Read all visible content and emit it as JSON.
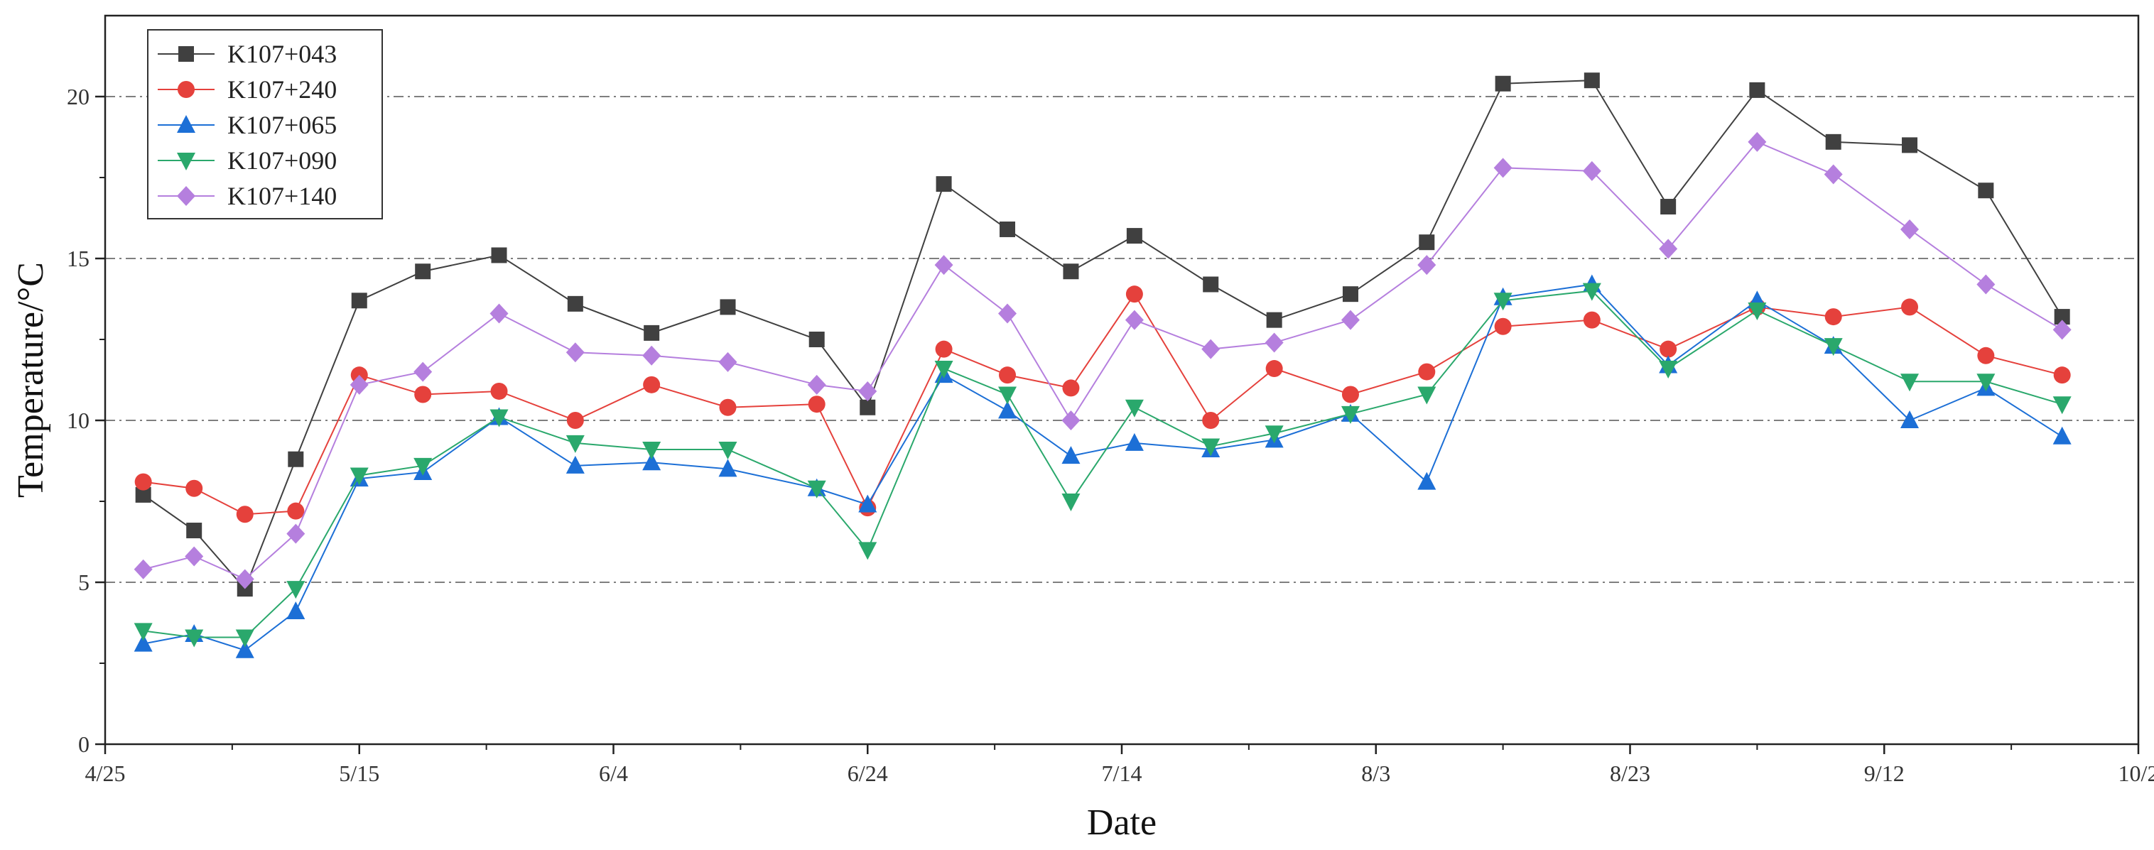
{
  "chart_data": {
    "type": "line",
    "title": "",
    "xlabel": "Date",
    "ylabel": "Temperature/°C",
    "ylim": [
      0,
      22.5
    ],
    "yticks": [
      0,
      5,
      10,
      15,
      20
    ],
    "xlim": [
      0,
      160
    ],
    "xticks": [
      {
        "value": 0,
        "label": "4/25"
      },
      {
        "value": 20,
        "label": "5/15"
      },
      {
        "value": 40,
        "label": "6/4"
      },
      {
        "value": 60,
        "label": "6/24"
      },
      {
        "value": 80,
        "label": "7/14"
      },
      {
        "value": 100,
        "label": "8/3"
      },
      {
        "value": 120,
        "label": "8/23"
      },
      {
        "value": 140,
        "label": "9/12"
      },
      {
        "value": 160,
        "label": "10/2"
      }
    ],
    "gridlines": [
      5,
      10,
      15,
      20
    ],
    "legend_position": "top-left",
    "x": [
      3,
      7,
      11,
      15,
      20,
      25,
      31,
      37,
      43,
      49,
      56,
      60,
      66,
      71,
      76,
      81,
      87,
      92,
      98,
      104,
      110,
      117,
      123,
      130,
      136,
      142,
      148,
      154
    ],
    "series": [
      {
        "name": "K107+043",
        "color": "#404040",
        "marker": "square",
        "values": [
          7.7,
          6.6,
          4.8,
          8.8,
          13.7,
          14.6,
          15.1,
          13.6,
          12.7,
          13.5,
          12.5,
          10.4,
          17.3,
          15.9,
          14.6,
          15.7,
          14.2,
          13.1,
          13.9,
          15.5,
          20.4,
          20.5,
          16.6,
          20.2,
          18.6,
          18.5,
          17.1,
          13.2
        ]
      },
      {
        "name": "K107+240",
        "color": "#e5413c",
        "marker": "circle",
        "values": [
          8.1,
          7.9,
          7.1,
          7.2,
          11.4,
          10.8,
          10.9,
          10.0,
          11.1,
          10.4,
          10.5,
          7.3,
          12.2,
          11.4,
          11.0,
          13.9,
          10.0,
          11.6,
          10.8,
          11.5,
          12.9,
          13.1,
          12.2,
          13.5,
          13.2,
          13.5,
          12.0,
          11.4
        ]
      },
      {
        "name": "K107+065",
        "color": "#1c6fd6",
        "marker": "triangle-up",
        "values": [
          3.1,
          3.4,
          2.9,
          4.1,
          8.2,
          8.4,
          10.1,
          8.6,
          8.7,
          8.5,
          7.9,
          7.4,
          11.4,
          10.3,
          8.9,
          9.3,
          9.1,
          9.4,
          10.2,
          8.1,
          13.8,
          14.2,
          11.7,
          13.7,
          12.3,
          10.0,
          11.0,
          9.5
        ]
      },
      {
        "name": "K107+090",
        "color": "#2aa86c",
        "marker": "triangle-down",
        "values": [
          3.5,
          3.3,
          3.3,
          4.8,
          8.3,
          8.6,
          10.1,
          9.3,
          9.1,
          9.1,
          7.9,
          6.0,
          11.6,
          10.8,
          7.5,
          10.4,
          9.2,
          9.6,
          10.2,
          10.8,
          13.7,
          14.0,
          11.6,
          13.4,
          12.3,
          11.2,
          11.2,
          10.5
        ]
      },
      {
        "name": "K107+140",
        "color": "#b57fde",
        "marker": "diamond",
        "values": [
          5.4,
          5.8,
          5.1,
          6.5,
          11.1,
          11.5,
          13.3,
          12.1,
          12.0,
          11.8,
          11.1,
          10.9,
          14.8,
          13.3,
          10.0,
          13.1,
          12.2,
          12.4,
          13.1,
          14.8,
          17.8,
          17.7,
          15.3,
          18.6,
          17.6,
          15.9,
          14.2,
          12.8
        ]
      }
    ]
  }
}
